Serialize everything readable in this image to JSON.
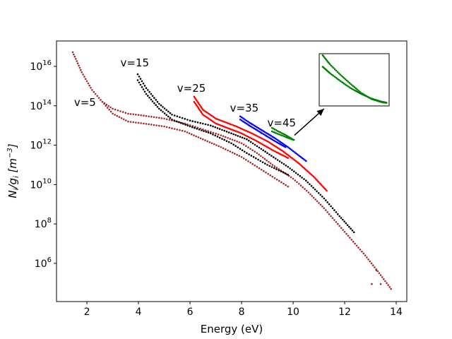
{
  "chart_data": {
    "type": "scatter",
    "title": "",
    "xlabel": "Energy (eV)",
    "ylabel": "N_i/g_i [m^-3]",
    "ylabel_parts": {
      "main": "N",
      "sub1": "i",
      "slash": "/g",
      "sub2": "i",
      "unit_open": " [m",
      "unit_exp": "−3",
      "unit_close": "]"
    },
    "xscale": "linear",
    "yscale": "log",
    "xlim": [
      0.82,
      14.41
    ],
    "ylim_log10": [
      4.06,
      17.29
    ],
    "xticks": [
      2,
      4,
      6,
      8,
      10,
      12,
      14
    ],
    "xtick_labels": [
      "2",
      "4",
      "6",
      "8",
      "10",
      "12",
      "14"
    ],
    "yticks_log10": [
      6,
      8,
      10,
      12,
      14,
      16
    ],
    "ytick_labels": [
      {
        "base": "10",
        "exp": "6"
      },
      {
        "base": "10",
        "exp": "8"
      },
      {
        "base": "10",
        "exp": "10"
      },
      {
        "base": "10",
        "exp": "12"
      },
      {
        "base": "10",
        "exp": "14"
      },
      {
        "base": "10",
        "exp": "16"
      }
    ],
    "grid": false,
    "legend": "none",
    "series": [
      {
        "name": "v=5",
        "color": "#a52a2a",
        "branches": [
          [
            [
              1.45,
              16.72
            ],
            [
              1.8,
              15.7
            ],
            [
              2.2,
              14.8
            ],
            [
              2.6,
              14.2
            ],
            [
              3.0,
              13.85
            ],
            [
              3.6,
              13.6
            ],
            [
              4.2,
              13.5
            ],
            [
              5.0,
              13.35
            ],
            [
              5.8,
              13.1
            ],
            [
              6.5,
              12.8
            ],
            [
              7.2,
              12.5
            ],
            [
              8.0,
              12.1
            ],
            [
              8.6,
              11.6
            ],
            [
              9.2,
              11.0
            ],
            [
              10.0,
              10.3
            ],
            [
              10.6,
              9.6
            ],
            [
              11.2,
              8.8
            ],
            [
              12.0,
              7.6
            ],
            [
              12.8,
              6.4
            ],
            [
              13.4,
              5.4
            ],
            [
              13.8,
              4.7
            ]
          ],
          [
            [
              2.6,
              14.2
            ],
            [
              3.0,
              13.6
            ],
            [
              3.6,
              13.2
            ],
            [
              4.2,
              13.1
            ],
            [
              5.0,
              12.95
            ],
            [
              5.8,
              12.7
            ],
            [
              6.5,
              12.3
            ],
            [
              7.2,
              11.9
            ],
            [
              8.0,
              11.4
            ],
            [
              8.6,
              10.9
            ],
            [
              9.2,
              10.4
            ],
            [
              9.8,
              9.9
            ]
          ]
        ],
        "outliers": [
          [
            13.23,
            5.65
          ],
          [
            13.4,
            4.95
          ],
          [
            13.05,
            4.95
          ]
        ]
      },
      {
        "name": "v=15",
        "color": "#000000",
        "branches": [
          [
            [
              3.97,
              15.6
            ],
            [
              4.3,
              14.9
            ],
            [
              4.8,
              14.1
            ],
            [
              5.3,
              13.55
            ],
            [
              6.0,
              13.25
            ],
            [
              6.8,
              13.0
            ],
            [
              7.6,
              12.6
            ],
            [
              8.2,
              12.3
            ],
            [
              9.0,
              11.6
            ],
            [
              9.8,
              10.9
            ],
            [
              10.5,
              10.2
            ],
            [
              11.2,
              9.3
            ],
            [
              11.8,
              8.4
            ],
            [
              12.36,
              7.58
            ]
          ],
          [
            [
              3.97,
              15.3
            ],
            [
              4.3,
              14.6
            ],
            [
              4.8,
              13.85
            ],
            [
              5.3,
              13.3
            ],
            [
              6.0,
              12.95
            ],
            [
              6.8,
              12.6
            ],
            [
              7.6,
              12.1
            ],
            [
              8.2,
              11.6
            ],
            [
              9.0,
              11.0
            ],
            [
              9.8,
              10.5
            ]
          ]
        ]
      },
      {
        "name": "v=25",
        "color": "#ff0000",
        "branches": [
          [
            [
              6.16,
              14.46
            ],
            [
              6.5,
              13.8
            ],
            [
              7.0,
              13.35
            ],
            [
              7.5,
              13.1
            ],
            [
              7.8,
              12.95
            ],
            [
              8.4,
              12.6
            ],
            [
              9.0,
              12.2
            ],
            [
              9.6,
              11.7
            ],
            [
              10.2,
              11.1
            ],
            [
              10.8,
              10.4
            ],
            [
              11.3,
              9.69
            ]
          ],
          [
            [
              6.16,
              14.2
            ],
            [
              6.5,
              13.55
            ],
            [
              7.0,
              13.1
            ],
            [
              7.5,
              12.85
            ],
            [
              8.0,
              12.6
            ],
            [
              8.6,
              12.2
            ],
            [
              9.2,
              11.75
            ],
            [
              9.8,
              11.35
            ]
          ]
        ]
      },
      {
        "name": "v=35",
        "color": "#0000ff",
        "branches": [
          [
            [
              7.95,
              13.46
            ],
            [
              8.3,
              13.15
            ],
            [
              8.8,
              12.75
            ],
            [
              9.3,
              12.35
            ],
            [
              9.8,
              11.9
            ],
            [
              10.2,
              11.5
            ],
            [
              10.5,
              11.2
            ]
          ],
          [
            [
              7.95,
              13.3
            ],
            [
              8.3,
              13.0
            ],
            [
              8.8,
              12.6
            ],
            [
              9.3,
              12.2
            ],
            [
              9.7,
              11.9
            ]
          ]
        ]
      },
      {
        "name": "v=45",
        "color": "#008000",
        "branches": [
          [
            [
              9.18,
              12.88
            ],
            [
              9.4,
              12.72
            ],
            [
              9.7,
              12.52
            ],
            [
              10.03,
              12.27
            ]
          ],
          [
            [
              9.18,
              12.7
            ],
            [
              9.4,
              12.58
            ],
            [
              9.7,
              12.42
            ],
            [
              10.0,
              12.27
            ]
          ]
        ]
      }
    ],
    "annotations": [
      {
        "text": "v=5",
        "x": 1.5,
        "y_log10": 14.0
      },
      {
        "text": "v=15",
        "x": 3.3,
        "y_log10": 16.0
      },
      {
        "text": "v=25",
        "x": 5.5,
        "y_log10": 14.7
      },
      {
        "text": "v=35",
        "x": 7.55,
        "y_log10": 13.7
      },
      {
        "text": "v=45",
        "x": 9.0,
        "y_log10": 12.95
      }
    ],
    "arrow": {
      "from": [
        10.05,
        12.5
      ],
      "to": [
        11.2,
        13.85
      ],
      "color": "#000000"
    },
    "inset": {
      "description": "zoom of v=45 series",
      "color": "#008000",
      "branches_normalized": [
        [
          [
            0.05,
            0.03
          ],
          [
            0.15,
            0.2
          ],
          [
            0.3,
            0.4
          ],
          [
            0.45,
            0.58
          ],
          [
            0.6,
            0.75
          ],
          [
            0.75,
            0.87
          ],
          [
            0.9,
            0.93
          ],
          [
            0.97,
            0.94
          ]
        ],
        [
          [
            0.05,
            0.25
          ],
          [
            0.15,
            0.37
          ],
          [
            0.3,
            0.52
          ],
          [
            0.45,
            0.66
          ],
          [
            0.6,
            0.77
          ],
          [
            0.75,
            0.86
          ],
          [
            0.9,
            0.92
          ],
          [
            0.97,
            0.94
          ]
        ]
      ]
    }
  }
}
